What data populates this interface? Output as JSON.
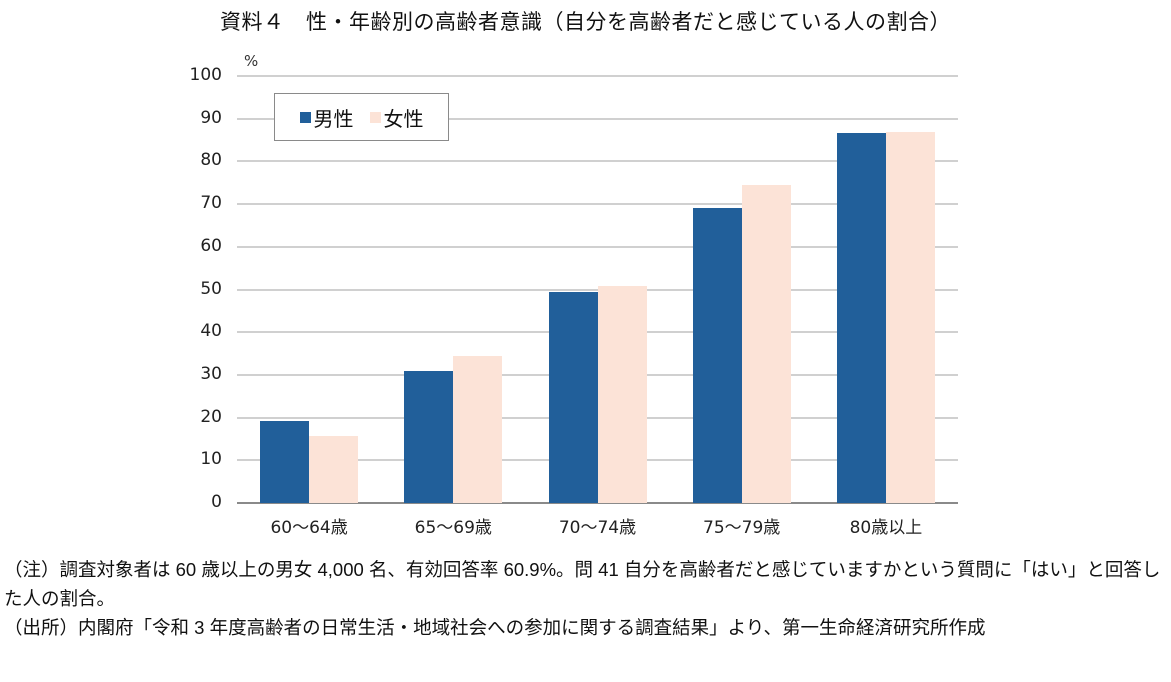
{
  "title": "資料４　性・年齢別の高齢者意識（自分を高齢者だと感じている人の割合）",
  "chart_data": {
    "type": "bar",
    "title": "資料４　性・年齢別の高齢者意識（自分を高齢者だと感じている人の割合）",
    "xlabel": "",
    "ylabel": "%",
    "ylim": [
      0,
      100
    ],
    "yticks": [
      0,
      10,
      20,
      30,
      40,
      50,
      60,
      70,
      80,
      90,
      100
    ],
    "grid": true,
    "legend_position": "upper-left-inside",
    "categories": [
      "60～64歳",
      "65～69歳",
      "70～74歳",
      "75～79歳",
      "80歳以上"
    ],
    "series": [
      {
        "name": "男性",
        "color": "#215f9a",
        "values": [
          19.2,
          30.9,
          49.4,
          69.1,
          86.6
        ]
      },
      {
        "name": "女性",
        "color": "#fce3d7",
        "values": [
          15.7,
          34.4,
          50.8,
          74.5,
          86.9
        ]
      }
    ]
  },
  "axis": {
    "unit_label": "%"
  },
  "legend": {
    "items": [
      {
        "label": "男性",
        "color": "#215f9a"
      },
      {
        "label": "女性",
        "color": "#fce3d7"
      }
    ]
  },
  "notes": {
    "note_line": "（注）調査対象者は 60 歳以上の男女 4,000 名、有効回答率 60.9%。問 41 自分を高齢者だと感じていますかという質問に「はい」と回答した人の割合。",
    "source_line": "（出所）内閣府「令和 3 年度高齢者の日常生活・地域社会への参加に関する調査結果」より、第一生命経済研究所作成"
  }
}
